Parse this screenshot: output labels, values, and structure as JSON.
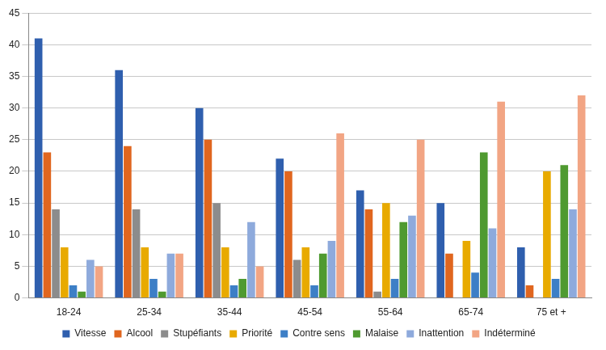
{
  "chart_data": {
    "type": "bar",
    "categories": [
      "18-24",
      "25-34",
      "35-44",
      "45-54",
      "55-64",
      "65-74",
      "75 et +"
    ],
    "series": [
      {
        "name": "Vitesse",
        "color": "#2f5fae",
        "values": [
          41,
          36,
          30,
          22,
          17,
          15,
          8
        ]
      },
      {
        "name": "Alcool",
        "color": "#e0661f",
        "values": [
          23,
          24,
          25,
          20,
          14,
          7,
          2
        ]
      },
      {
        "name": "Stupéfiants",
        "color": "#8c8c8c",
        "values": [
          14,
          14,
          15,
          6,
          1,
          0,
          0
        ]
      },
      {
        "name": "Priorité",
        "color": "#e8aa00",
        "values": [
          8,
          8,
          8,
          8,
          15,
          9,
          20
        ]
      },
      {
        "name": "Contre sens",
        "color": "#3d7fc6",
        "values": [
          2,
          3,
          2,
          2,
          3,
          4,
          3
        ]
      },
      {
        "name": "Malaise",
        "color": "#4f9a30",
        "values": [
          1,
          1,
          3,
          7,
          12,
          23,
          21
        ]
      },
      {
        "name": "Inattention",
        "color": "#8eaadc",
        "values": [
          6,
          7,
          12,
          9,
          13,
          11,
          14
        ]
      },
      {
        "name": "Indéterminé",
        "color": "#f2a584",
        "values": [
          5,
          7,
          5,
          26,
          25,
          31,
          32
        ]
      }
    ],
    "ylim": [
      0,
      45
    ],
    "yticks": [
      0,
      5,
      10,
      15,
      20,
      25,
      30,
      35,
      40,
      45
    ],
    "grid": true,
    "legend": "bottom"
  }
}
